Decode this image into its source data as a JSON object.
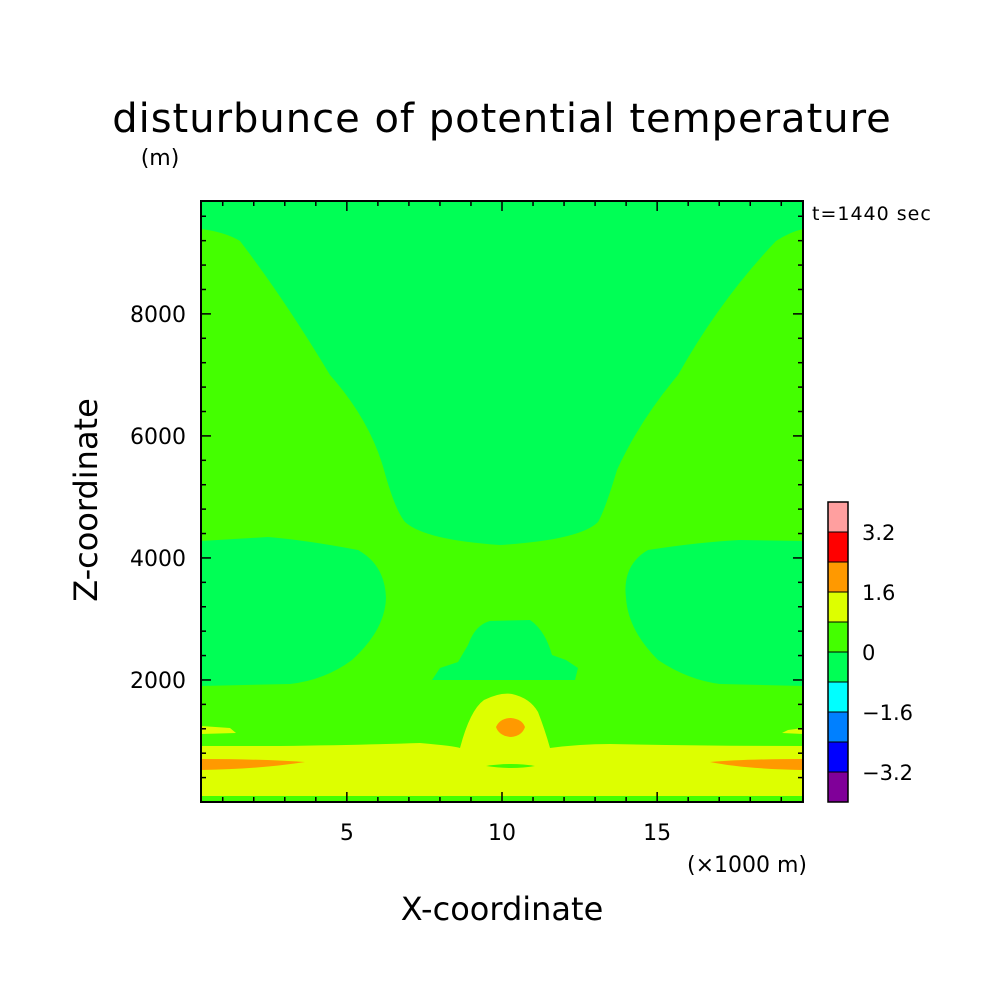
{
  "chart_data": {
    "type": "contour",
    "title": "disturbunce of potential temperature",
    "ylabel_units": "(m)",
    "time_label": "t=1440 sec",
    "xlabel": "X-coordinate",
    "xunit": "(×1000 m)",
    "ylabel": "Z-coordinate",
    "xlim": [
      0.3,
      19.7
    ],
    "ylim": [
      0,
      9850
    ],
    "x_ticks": [
      5,
      10,
      15
    ],
    "y_ticks": [
      2000,
      4000,
      6000,
      8000
    ],
    "colorbar": {
      "levels": [
        -4.0,
        -3.2,
        -2.4,
        -1.6,
        -0.8,
        0,
        0.8,
        1.6,
        2.4,
        3.2,
        4.0
      ],
      "labels": [
        "-3.2",
        "-1.6",
        "0",
        "1.6",
        "3.2"
      ],
      "label_values": [
        -3.2,
        -1.6,
        0,
        1.6,
        3.2
      ],
      "colors": [
        "#800099",
        "#0000ff",
        "#0080ff",
        "#00ffff",
        "#00ff55",
        "#44ff00",
        "#ddff00",
        "#ff9900",
        "#ff0000",
        "#ff9f9f"
      ]
    },
    "colors": {
      "near_zero_negative": "#00ff55",
      "near_zero_positive": "#44ff00",
      "weak_positive": "#ddff00",
      "moderate_positive": "#ff9900"
    },
    "description_regions": {
      "background_level": "0 to 0.8",
      "upper_center_bowl": "0 to -0.8",
      "mid_upper_wedge": "0 to -0.8",
      "side_lobes_2000_4400m": "0 to -0.8",
      "low_level_band_0_1000m": "0.8 to 1.6",
      "warm_core_x10_z1300": "1.6 to 2.4",
      "edge_streaks_z700": "1.6 to 2.4"
    }
  }
}
